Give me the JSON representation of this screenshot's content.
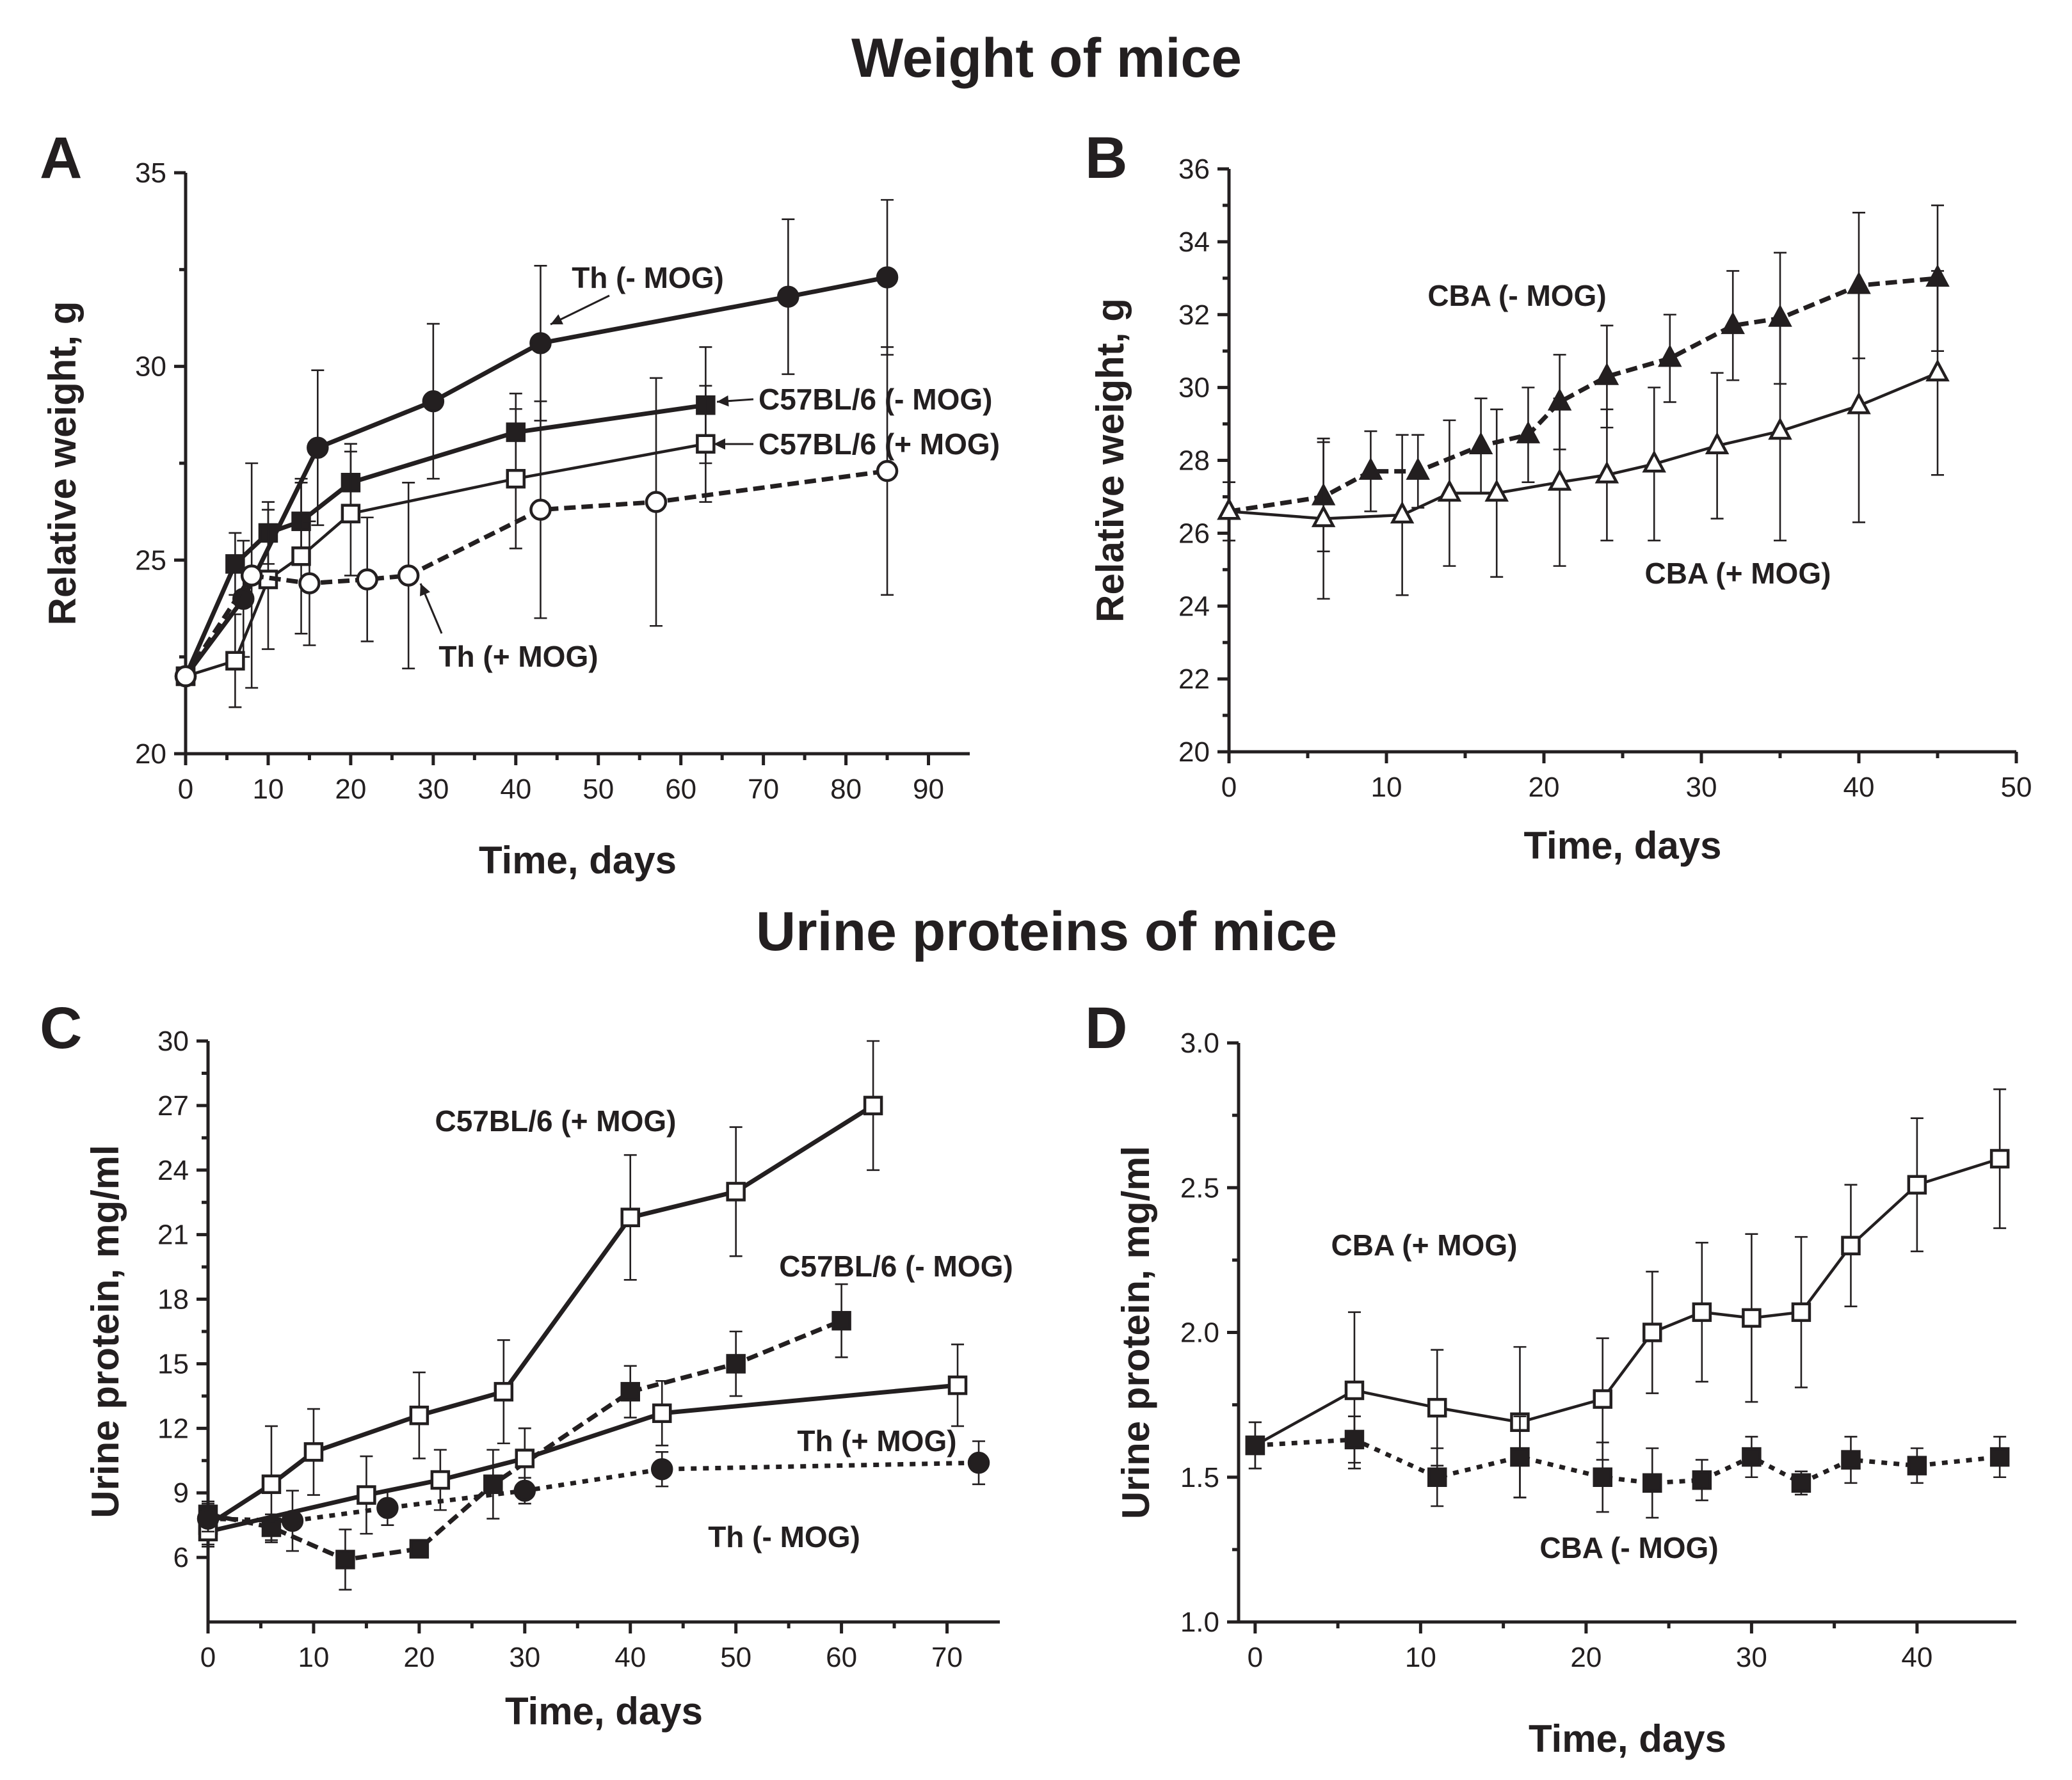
{
  "colors": {
    "ink": "#231f20",
    "background": "#ffffff"
  },
  "titles": {
    "weight": "Weight of mice",
    "urine": "Urine proteins of mice"
  },
  "chart_data": [
    {
      "id": "A",
      "type": "line",
      "panel_label": "A",
      "title": "",
      "xlabel": "Time, days",
      "ylabel": "Relative weight, g",
      "xlim": [
        0,
        95
      ],
      "ylim": [
        20,
        35
      ],
      "xticks": [
        0,
        10,
        20,
        30,
        40,
        50,
        60,
        70,
        80,
        90
      ],
      "yticks": [
        20,
        25,
        30,
        35
      ],
      "series": [
        {
          "name": "Th (- MOG)",
          "marker": "circle",
          "fill": "filled",
          "dash": "solid",
          "weight": "thick",
          "x": [
            0,
            7,
            16,
            30,
            43,
            73,
            85
          ],
          "y": [
            22.0,
            24.0,
            27.9,
            29.1,
            30.6,
            31.8,
            32.3
          ],
          "err": [
            0,
            1.5,
            2.0,
            2.0,
            2.0,
            2.0,
            2.0
          ]
        },
        {
          "name": "C57BL/6 (- MOG)",
          "marker": "square",
          "fill": "filled",
          "dash": "solid",
          "weight": "thick",
          "x": [
            0,
            6,
            10,
            14,
            20,
            40,
            63
          ],
          "y": [
            22.0,
            24.9,
            25.7,
            26.0,
            27.0,
            28.3,
            29.0
          ],
          "err": [
            0,
            0.8,
            0.8,
            1.0,
            1.0,
            1.0,
            1.5
          ]
        },
        {
          "name": "C57BL/6 (+ MOG)",
          "marker": "square",
          "fill": "open",
          "dash": "solid",
          "weight": "thin",
          "x": [
            0,
            6,
            10,
            14,
            20,
            40,
            63
          ],
          "y": [
            22.0,
            22.4,
            24.5,
            25.1,
            26.2,
            27.1,
            28.0
          ],
          "err": [
            0,
            1.2,
            1.8,
            2.0,
            1.6,
            1.8,
            1.5
          ]
        },
        {
          "name": "Th (+ MOG)",
          "marker": "circle",
          "fill": "open",
          "dash": "dashed",
          "weight": "thick",
          "x": [
            0,
            8,
            15,
            22,
            27,
            43,
            57,
            85
          ],
          "y": [
            22.0,
            24.6,
            24.4,
            24.5,
            24.6,
            26.3,
            26.5,
            27.3
          ],
          "err": [
            0,
            2.9,
            1.6,
            1.6,
            2.4,
            2.8,
            3.2,
            3.2
          ]
        }
      ],
      "annotations": [
        {
          "text": "Th (- MOG)",
          "series": "Th (- MOG)"
        },
        {
          "text": "C57BL/6 (- MOG)",
          "series": "C57BL/6 (- MOG)"
        },
        {
          "text": "C57BL/6 (+ MOG)",
          "series": "C57BL/6 (+ MOG)"
        },
        {
          "text": "Th (+ MOG)",
          "series": "Th (+ MOG)"
        }
      ]
    },
    {
      "id": "B",
      "type": "line",
      "panel_label": "B",
      "title": "",
      "xlabel": "Time, days",
      "ylabel": "Relative weight, g",
      "xlim": [
        0,
        50
      ],
      "ylim": [
        20,
        36
      ],
      "xticks": [
        0,
        10,
        20,
        30,
        40,
        50
      ],
      "yticks": [
        20,
        22,
        24,
        26,
        28,
        30,
        32,
        34,
        36
      ],
      "series": [
        {
          "name": "CBA (- MOG)",
          "marker": "triangle",
          "fill": "filled",
          "dash": "dashed",
          "weight": "thick",
          "x": [
            0,
            6,
            9,
            12,
            16,
            19,
            21,
            24,
            28,
            32,
            35,
            40,
            45
          ],
          "y": [
            26.6,
            27.0,
            27.7,
            27.7,
            28.4,
            28.7,
            29.6,
            30.3,
            30.8,
            31.7,
            31.9,
            32.8,
            33.0
          ],
          "err": [
            0.8,
            1.5,
            1.1,
            1.0,
            1.3,
            1.3,
            1.3,
            1.4,
            1.2,
            1.5,
            1.8,
            2.0,
            2.0
          ]
        },
        {
          "name": "CBA (+ MOG)",
          "marker": "triangle",
          "fill": "open",
          "dash": "solid",
          "weight": "thin",
          "x": [
            0,
            6,
            11,
            14,
            17,
            21,
            24,
            27,
            31,
            35,
            40,
            45
          ],
          "y": [
            26.6,
            26.4,
            26.5,
            27.1,
            27.1,
            27.4,
            27.6,
            27.9,
            28.4,
            28.8,
            29.5,
            30.4
          ],
          "err": [
            0.8,
            2.2,
            2.2,
            2.0,
            2.3,
            2.3,
            1.8,
            2.1,
            2.0,
            3.0,
            3.2,
            2.8
          ]
        }
      ],
      "annotations": [
        {
          "text": "CBA (- MOG)",
          "series": "CBA (- MOG)"
        },
        {
          "text": "CBA (+ MOG)",
          "series": "CBA (+ MOG)"
        }
      ]
    },
    {
      "id": "C",
      "type": "line",
      "panel_label": "C",
      "title": "",
      "xlabel": "Time, days",
      "ylabel": "Urine protein, mg/ml",
      "xlim": [
        0,
        75
      ],
      "ylim": [
        3,
        30
      ],
      "xticks": [
        0,
        10,
        20,
        30,
        40,
        50,
        60,
        70
      ],
      "yticks": [
        6,
        9,
        12,
        15,
        18,
        21,
        24,
        27,
        30
      ],
      "series": [
        {
          "name": "C57BL/6 (+ MOG)",
          "marker": "square",
          "fill": "open",
          "dash": "solid",
          "weight": "thick",
          "x": [
            0,
            6,
            10,
            20,
            28,
            40,
            50,
            63
          ],
          "y": [
            7.5,
            9.4,
            10.9,
            12.6,
            13.7,
            21.8,
            23.0,
            27.0
          ],
          "err": [
            1.0,
            2.7,
            2.0,
            2.0,
            2.4,
            2.9,
            3.0,
            3.0
          ]
        },
        {
          "name": "C57BL/6 (- MOG)",
          "marker": "square",
          "fill": "filled",
          "dash": "dashed",
          "weight": "thick",
          "x": [
            0,
            6,
            13,
            20,
            27,
            40,
            50,
            60
          ],
          "y": [
            8.0,
            7.4,
            5.9,
            6.4,
            9.4,
            13.7,
            15.0,
            17.0
          ],
          "err": [
            0.6,
            0.6,
            1.4,
            0.4,
            1.6,
            1.2,
            1.5,
            1.7
          ]
        },
        {
          "name": "Th (+ MOG)",
          "marker": "square",
          "fill": "open",
          "dash": "solid",
          "weight": "thick",
          "x": [
            0,
            15,
            22,
            30,
            43,
            71
          ],
          "y": [
            7.2,
            8.9,
            9.6,
            10.6,
            12.7,
            14.0
          ],
          "err": [
            0.6,
            1.8,
            1.4,
            1.4,
            1.5,
            1.9
          ]
        },
        {
          "name": "Th (- MOG)",
          "marker": "circle",
          "fill": "filled",
          "dash": "dotted",
          "weight": "thick",
          "x": [
            0,
            8,
            17,
            30,
            43,
            73
          ],
          "y": [
            7.8,
            7.7,
            8.3,
            9.1,
            10.1,
            10.4
          ],
          "err": [
            0.6,
            1.4,
            0.8,
            0.6,
            0.8,
            1.0
          ]
        }
      ],
      "annotations": [
        {
          "text": "C57BL/6 (+ MOG)",
          "series": "C57BL/6 (+ MOG)"
        },
        {
          "text": "C57BL/6 (- MOG)",
          "series": "C57BL/6 (- MOG)"
        },
        {
          "text": "Th (+ MOG)",
          "series": "Th (+ MOG)"
        },
        {
          "text": "Th (- MOG)",
          "series": "Th (- MOG)"
        }
      ]
    },
    {
      "id": "D",
      "type": "line",
      "panel_label": "D",
      "title": "",
      "xlabel": "Time, days",
      "ylabel": "Urine protein, mg/ml",
      "xlim": [
        -1,
        46
      ],
      "ylim": [
        1.0,
        3.0
      ],
      "xticks": [
        0,
        10,
        20,
        30,
        40
      ],
      "yticks": [
        1.0,
        1.5,
        2.0,
        2.5,
        3.0
      ],
      "tick_decimals": 1,
      "series": [
        {
          "name": "CBA (+ MOG)",
          "marker": "square",
          "fill": "open",
          "dash": "solid",
          "weight": "thin",
          "x": [
            0,
            6,
            11,
            16,
            21,
            24,
            27,
            30,
            33,
            36,
            40,
            45
          ],
          "y": [
            1.61,
            1.8,
            1.74,
            1.69,
            1.77,
            2.0,
            2.07,
            2.05,
            2.07,
            2.3,
            2.51,
            2.6
          ],
          "err": [
            0.08,
            0.27,
            0.2,
            0.26,
            0.21,
            0.21,
            0.24,
            0.29,
            0.26,
            0.21,
            0.23,
            0.24
          ]
        },
        {
          "name": "CBA (- MOG)",
          "marker": "square",
          "fill": "filled",
          "dash": "dotted",
          "weight": "thick",
          "x": [
            0,
            6,
            11,
            16,
            21,
            24,
            27,
            30,
            33,
            36,
            40,
            45
          ],
          "y": [
            1.61,
            1.63,
            1.5,
            1.57,
            1.5,
            1.48,
            1.49,
            1.57,
            1.48,
            1.56,
            1.54,
            1.57
          ],
          "err": [
            0.08,
            0.08,
            0.1,
            0.14,
            0.12,
            0.12,
            0.07,
            0.07,
            0.04,
            0.08,
            0.06,
            0.07
          ]
        }
      ],
      "annotations": [
        {
          "text": "CBA  (+ MOG)",
          "series": "CBA (+ MOG)"
        },
        {
          "text": "CBA (- MOG)",
          "series": "CBA (- MOG)"
        }
      ]
    }
  ]
}
